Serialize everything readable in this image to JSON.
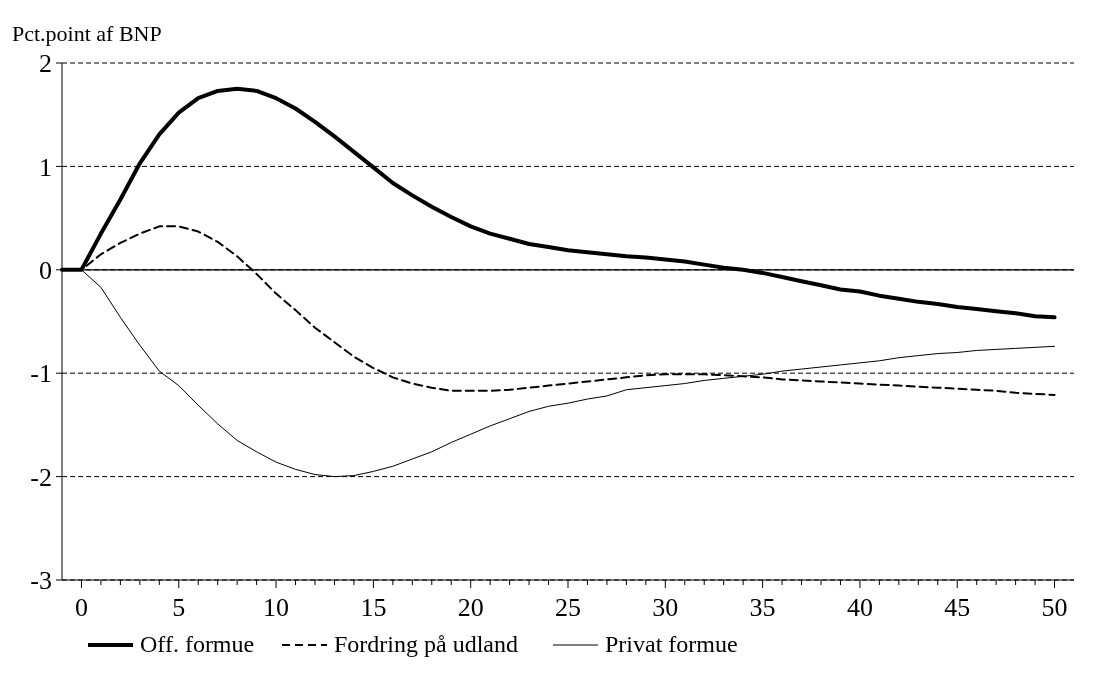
{
  "chart_data": {
    "type": "line",
    "ylabel": "Pct.point af BNP",
    "x": [
      -1,
      0,
      1,
      2,
      3,
      4,
      5,
      6,
      7,
      8,
      9,
      10,
      11,
      12,
      13,
      14,
      15,
      16,
      17,
      18,
      19,
      20,
      21,
      22,
      23,
      24,
      25,
      26,
      27,
      28,
      29,
      30,
      31,
      32,
      33,
      34,
      35,
      36,
      37,
      38,
      39,
      40,
      41,
      42,
      43,
      44,
      45,
      46,
      47,
      48,
      49,
      50
    ],
    "series": [
      {
        "name": "Off. formue",
        "color": "#000000",
        "line_style": "solid",
        "values": [
          0,
          0,
          0.35,
          0.68,
          1.03,
          1.31,
          1.52,
          1.66,
          1.73,
          1.75,
          1.73,
          1.66,
          1.56,
          1.43,
          1.29,
          1.14,
          0.99,
          0.84,
          0.72,
          0.61,
          0.51,
          0.42,
          0.35,
          0.3,
          0.25,
          0.22,
          0.19,
          0.17,
          0.15,
          0.13,
          0.12,
          0.1,
          0.08,
          0.05,
          0.02,
          0.0,
          -0.03,
          -0.07,
          -0.11,
          -0.15,
          -0.19,
          -0.21,
          -0.25,
          -0.28,
          -0.31,
          -0.33,
          -0.36,
          -0.38,
          -0.4,
          -0.42,
          -0.45,
          -0.46
        ]
      },
      {
        "name": "Fordring på udland",
        "color": "#000000",
        "line_style": "dashed",
        "values": [
          0,
          0,
          0.15,
          0.26,
          0.35,
          0.42,
          0.42,
          0.37,
          0.27,
          0.13,
          -0.04,
          -0.23,
          -0.39,
          -0.56,
          -0.7,
          -0.84,
          -0.95,
          -1.04,
          -1.1,
          -1.14,
          -1.17,
          -1.17,
          -1.17,
          -1.16,
          -1.14,
          -1.12,
          -1.1,
          -1.08,
          -1.06,
          -1.04,
          -1.02,
          -1.01,
          -1.01,
          -1.01,
          -1.02,
          -1.03,
          -1.04,
          -1.06,
          -1.07,
          -1.08,
          -1.09,
          -1.1,
          -1.11,
          -1.12,
          -1.13,
          -1.14,
          -1.15,
          -1.16,
          -1.17,
          -1.19,
          -1.2,
          -1.21
        ]
      },
      {
        "name": "Privat formue",
        "color": "#000000",
        "line_style": "solid",
        "values": [
          0,
          0,
          -0.17,
          -0.46,
          -0.73,
          -0.98,
          -1.12,
          -1.31,
          -1.49,
          -1.65,
          -1.76,
          -1.86,
          -1.93,
          -1.98,
          -2.0,
          -1.99,
          -1.95,
          -1.9,
          -1.83,
          -1.76,
          -1.67,
          -1.59,
          -1.51,
          -1.44,
          -1.37,
          -1.32,
          -1.29,
          -1.25,
          -1.22,
          -1.16,
          -1.14,
          -1.12,
          -1.1,
          -1.07,
          -1.05,
          -1.03,
          -1.01,
          -0.98,
          -0.96,
          -0.94,
          -0.92,
          -0.9,
          -0.88,
          -0.85,
          -0.83,
          -0.81,
          -0.8,
          -0.78,
          -0.77,
          -0.76,
          -0.75,
          -0.74
        ]
      }
    ],
    "xlim": [
      -1,
      51
    ],
    "xticks": [
      0,
      {
        "value": 1,
        "label": null
      },
      {
        "value": 2,
        "label": null
      },
      {
        "value": 3,
        "label": null
      },
      {
        "value": 4,
        "label": null
      },
      5,
      {
        "value": 6,
        "label": null
      },
      {
        "value": 7,
        "label": null
      },
      {
        "value": 8,
        "label": null
      },
      {
        "value": 9,
        "label": null
      },
      10,
      {
        "value": 11,
        "label": null
      },
      {
        "value": 12,
        "label": null
      },
      {
        "value": 13,
        "label": null
      },
      {
        "value": 14,
        "label": null
      },
      15,
      {
        "value": 16,
        "label": null
      },
      {
        "value": 17,
        "label": null
      },
      {
        "value": 18,
        "label": null
      },
      {
        "value": 19,
        "label": null
      },
      20,
      {
        "value": 21,
        "label": null
      },
      {
        "value": 22,
        "label": null
      },
      {
        "value": 23,
        "label": null
      },
      {
        "value": 24,
        "label": null
      },
      25,
      {
        "value": 26,
        "label": null
      },
      {
        "value": 27,
        "label": null
      },
      {
        "value": 28,
        "label": null
      },
      {
        "value": 29,
        "label": null
      },
      30,
      {
        "value": 31,
        "label": null
      },
      {
        "value": 32,
        "label": null
      },
      {
        "value": 33,
        "label": null
      },
      {
        "value": 34,
        "label": null
      },
      35,
      {
        "value": 36,
        "label": null
      },
      {
        "value": 37,
        "label": null
      },
      {
        "value": 38,
        "label": null
      },
      {
        "value": 39,
        "label": null
      },
      40,
      {
        "value": 41,
        "label": null
      },
      {
        "value": 42,
        "label": null
      },
      {
        "value": 43,
        "label": null
      },
      {
        "value": 44,
        "label": null
      },
      45,
      {
        "value": 46,
        "label": null
      },
      {
        "value": 47,
        "label": null
      },
      {
        "value": 48,
        "label": null
      },
      {
        "value": 49,
        "label": null
      },
      50
    ],
    "ylim": [
      -3,
      2
    ],
    "yticks": [
      -3,
      -2,
      -1,
      0,
      1,
      2
    ],
    "grid": "y",
    "ref_lines": [
      {
        "axis": "y",
        "value": 0,
        "line_style": "solid"
      }
    ],
    "legend": "bottom",
    "marker": "none"
  }
}
